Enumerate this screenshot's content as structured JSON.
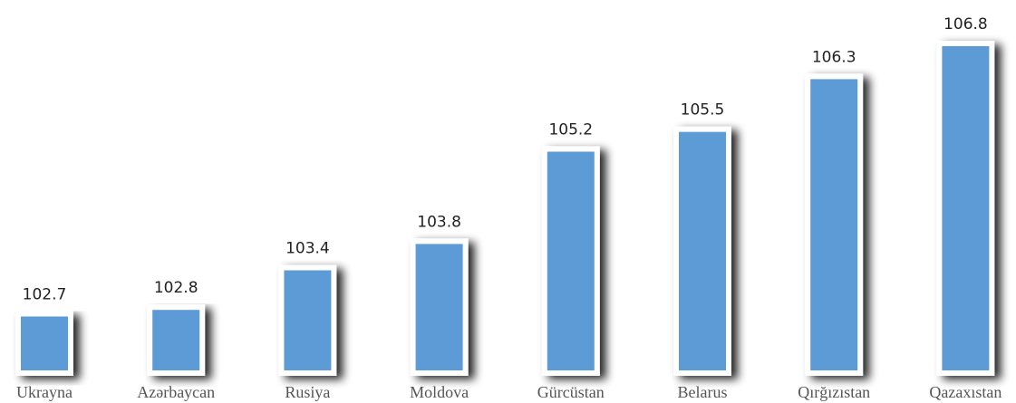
{
  "chart_data": {
    "type": "bar",
    "title": "",
    "xlabel": "",
    "ylabel": "",
    "categories": [
      "Ukrayna",
      "Azərbaycan",
      "Rusiya",
      "Moldova",
      "Gürcüstan",
      "Belarus",
      "Qırğızıstan",
      "Qazaxıstan"
    ],
    "values": [
      102.7,
      102.8,
      103.4,
      103.8,
      105.2,
      105.5,
      106.3,
      106.8
    ],
    "value_labels": [
      "102.7",
      "102.8",
      "103.4",
      "103.8",
      "105.2",
      "105.5",
      "106.3",
      "106.8"
    ],
    "ylim": [
      101.8,
      106.8
    ],
    "grid": false,
    "legend": "none",
    "colors": {
      "bar_fill": "#5b9bd5",
      "bar_border": "#ffffff",
      "shadow": "#000000"
    }
  }
}
